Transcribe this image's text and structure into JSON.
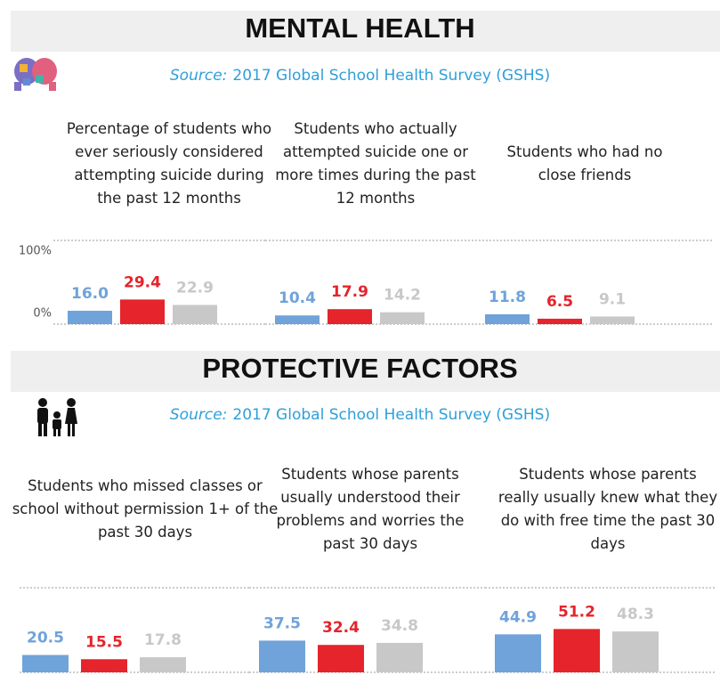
{
  "sections": [
    {
      "title": "MENTAL HEALTH",
      "source_label": "Source:",
      "source_text": "2017 Global School Health Survey (GSHS)"
    },
    {
      "title": "PROTECTIVE FACTORS",
      "source_label": "Source:",
      "source_text": "2017 Global School Health Survey (GSHS)"
    }
  ],
  "chart_data": [
    {
      "type": "bar",
      "title": "Percentage of students who ever seriously considered attempting suicide during the past 12 months",
      "values": [
        16.0,
        29.4,
        22.9
      ],
      "value_labels": [
        "16.0",
        "29.4",
        "22.9"
      ],
      "colors": [
        "#6fa3da",
        "#e5242b",
        "#c8c8c8"
      ],
      "ylim": [
        0,
        100
      ],
      "yticks": [
        {
          "value": 100,
          "label": "100%"
        },
        {
          "value": 0,
          "label": "0%"
        }
      ]
    },
    {
      "type": "bar",
      "title": "Students who actually attempted suicide one or more times during the past 12 months",
      "values": [
        10.4,
        17.9,
        14.2
      ],
      "value_labels": [
        "10.4",
        "17.9",
        "14.2"
      ],
      "colors": [
        "#6fa3da",
        "#e5242b",
        "#c8c8c8"
      ],
      "ylim": [
        0,
        100
      ]
    },
    {
      "type": "bar",
      "title": "Students who had no close friends",
      "values": [
        11.8,
        6.5,
        9.1
      ],
      "value_labels": [
        "11.8",
        "6.5",
        "9.1"
      ],
      "colors": [
        "#6fa3da",
        "#e5242b",
        "#c8c8c8"
      ],
      "ylim": [
        0,
        100
      ]
    },
    {
      "type": "bar",
      "title": "Students who missed classes or school without permission 1+ of the past 30 days",
      "values": [
        20.5,
        15.5,
        17.8
      ],
      "value_labels": [
        "20.5",
        "15.5",
        "17.8"
      ],
      "colors": [
        "#6fa3da",
        "#e5242b",
        "#c8c8c8"
      ],
      "ylim": [
        0,
        100
      ]
    },
    {
      "type": "bar",
      "title": "Students whose parents usually understood their problems and worries the past 30 days",
      "values": [
        37.5,
        32.4,
        34.8
      ],
      "value_labels": [
        "37.5",
        "32.4",
        "34.8"
      ],
      "colors": [
        "#6fa3da",
        "#e5242b",
        "#c8c8c8"
      ],
      "ylim": [
        0,
        100
      ]
    },
    {
      "type": "bar",
      "title": "Students whose parents really usually knew what they do with free time the past 30 days",
      "values": [
        44.9,
        51.2,
        48.3
      ],
      "value_labels": [
        "44.9",
        "51.2",
        "48.3"
      ],
      "colors": [
        "#6fa3da",
        "#e5242b",
        "#c8c8c8"
      ],
      "ylim": [
        0,
        100
      ]
    }
  ]
}
